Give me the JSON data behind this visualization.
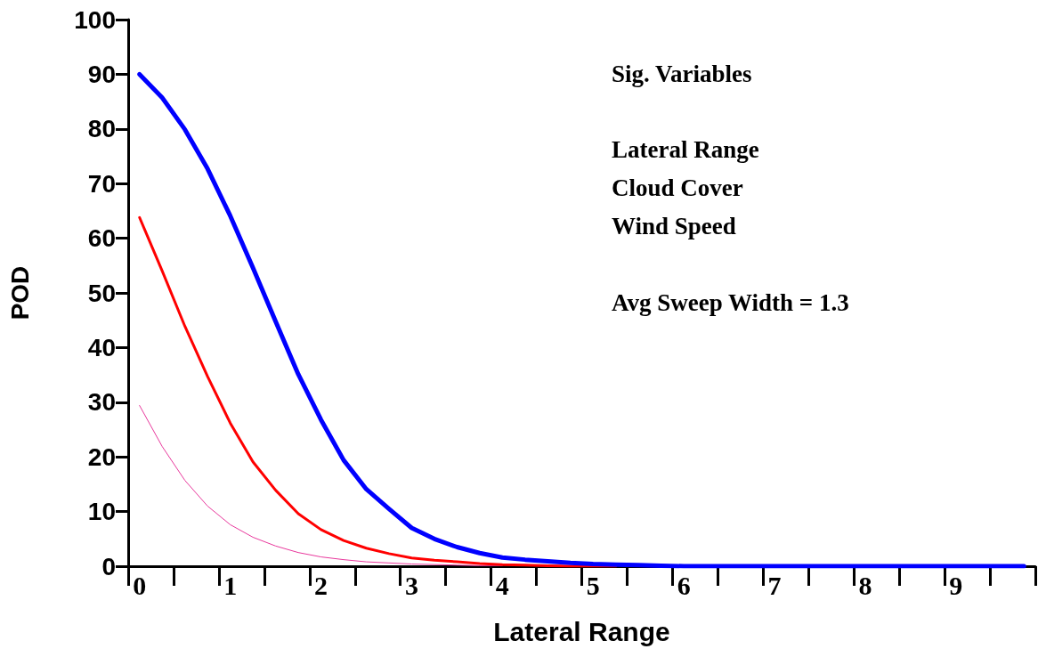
{
  "chart_data": {
    "type": "line",
    "xlabel": "Lateral Range",
    "ylabel": "POD",
    "categories": [
      "0",
      null,
      null,
      null,
      "1",
      null,
      null,
      null,
      "2",
      null,
      null,
      null,
      "3",
      null,
      null,
      null,
      "4",
      null,
      null,
      null,
      "5",
      null,
      null,
      null,
      "6",
      null,
      null,
      null,
      "7",
      null,
      null,
      null,
      "8",
      null,
      null,
      null,
      "9",
      null,
      null,
      null
    ],
    "series": [
      {
        "color": "#0000ff",
        "values": [
          90.0,
          85.7,
          79.9,
          72.7,
          64.1,
          54.6,
          44.8,
          35.1,
          26.8,
          19.4,
          14.1,
          10.5,
          7.0,
          5.0,
          3.5,
          2.4,
          1.6,
          1.2,
          0.9,
          0.6,
          0.4,
          0.3,
          0.2,
          0.1,
          0,
          0,
          0,
          0,
          0,
          0,
          0,
          0,
          0,
          0,
          0,
          0,
          0,
          0,
          0,
          0
        ]
      },
      {
        "color": "#ff0000",
        "values": [
          63.8,
          54.0,
          43.9,
          34.7,
          26.2,
          19.1,
          13.9,
          9.6,
          6.7,
          4.7,
          3.3,
          2.3,
          1.5,
          1.1,
          0.8,
          0.5,
          0.3,
          0.2,
          0.1,
          0,
          0,
          0,
          null,
          null,
          null,
          null,
          null,
          null,
          null,
          null,
          null,
          null,
          null,
          null,
          null,
          null,
          null,
          null,
          null,
          null
        ]
      },
      {
        "color": "#e8389c",
        "values": [
          29.4,
          21.9,
          15.7,
          11.0,
          7.6,
          5.3,
          3.7,
          2.5,
          1.7,
          1.2,
          0.8,
          0.6,
          0.4,
          0.3,
          0.2,
          0.1,
          0.1,
          null,
          null,
          null,
          null,
          null,
          null,
          null,
          null,
          null,
          null,
          null,
          null,
          null,
          null,
          null,
          null,
          null,
          null,
          null,
          null,
          null,
          null,
          null
        ]
      }
    ],
    "ylim": [
      0,
      100
    ],
    "yticks": [
      0,
      10,
      20,
      30,
      40,
      50,
      60,
      70,
      80,
      90,
      100
    ],
    "grid": false,
    "marker": "none",
    "line_style": "solid",
    "annotations": [
      "Sig. Variables",
      "Lateral Range",
      "Cloud Cover",
      "Wind Speed",
      "Avg Sweep Width = 1.3"
    ]
  }
}
